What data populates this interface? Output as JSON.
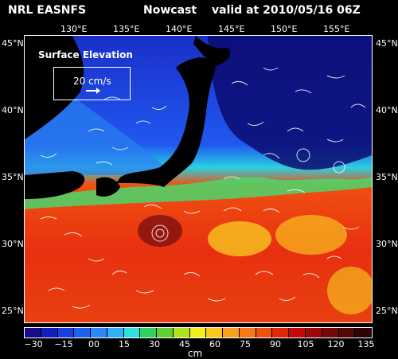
{
  "header": {
    "model": "NRL EASNFS",
    "type": "Nowcast",
    "valid": "valid at 2010/05/16 06Z"
  },
  "field_label": "Surface Elevation",
  "reference_vector": "20 cm/s",
  "lon_labels": [
    "130°E",
    "135°E",
    "140°E",
    "145°E",
    "150°E",
    "155°E"
  ],
  "lat_labels_left": [
    "45°N",
    "40°N",
    "35°N",
    "30°N",
    "25°N"
  ],
  "lat_labels_right": [
    "45°N",
    "40°N",
    "35°N",
    "30°N",
    "25°N"
  ],
  "colorbar": {
    "unit": "cm",
    "ticks": [
      "−30",
      "−15",
      "00",
      "15",
      "30",
      "45",
      "60",
      "75",
      "90",
      "105",
      "120",
      "135"
    ],
    "colors": [
      "#1a0a8c",
      "#1020c0",
      "#1a3ee0",
      "#2060f0",
      "#2a88f8",
      "#30b0f8",
      "#30e0e0",
      "#30d060",
      "#60d030",
      "#b0e020",
      "#f0f020",
      "#f8c820",
      "#f8a020",
      "#f87818",
      "#f05010",
      "#e02808",
      "#c80808",
      "#a00808",
      "#780808",
      "#500808",
      "#300404"
    ]
  },
  "colors": {
    "background": "#000000",
    "text": "#ffffff"
  }
}
